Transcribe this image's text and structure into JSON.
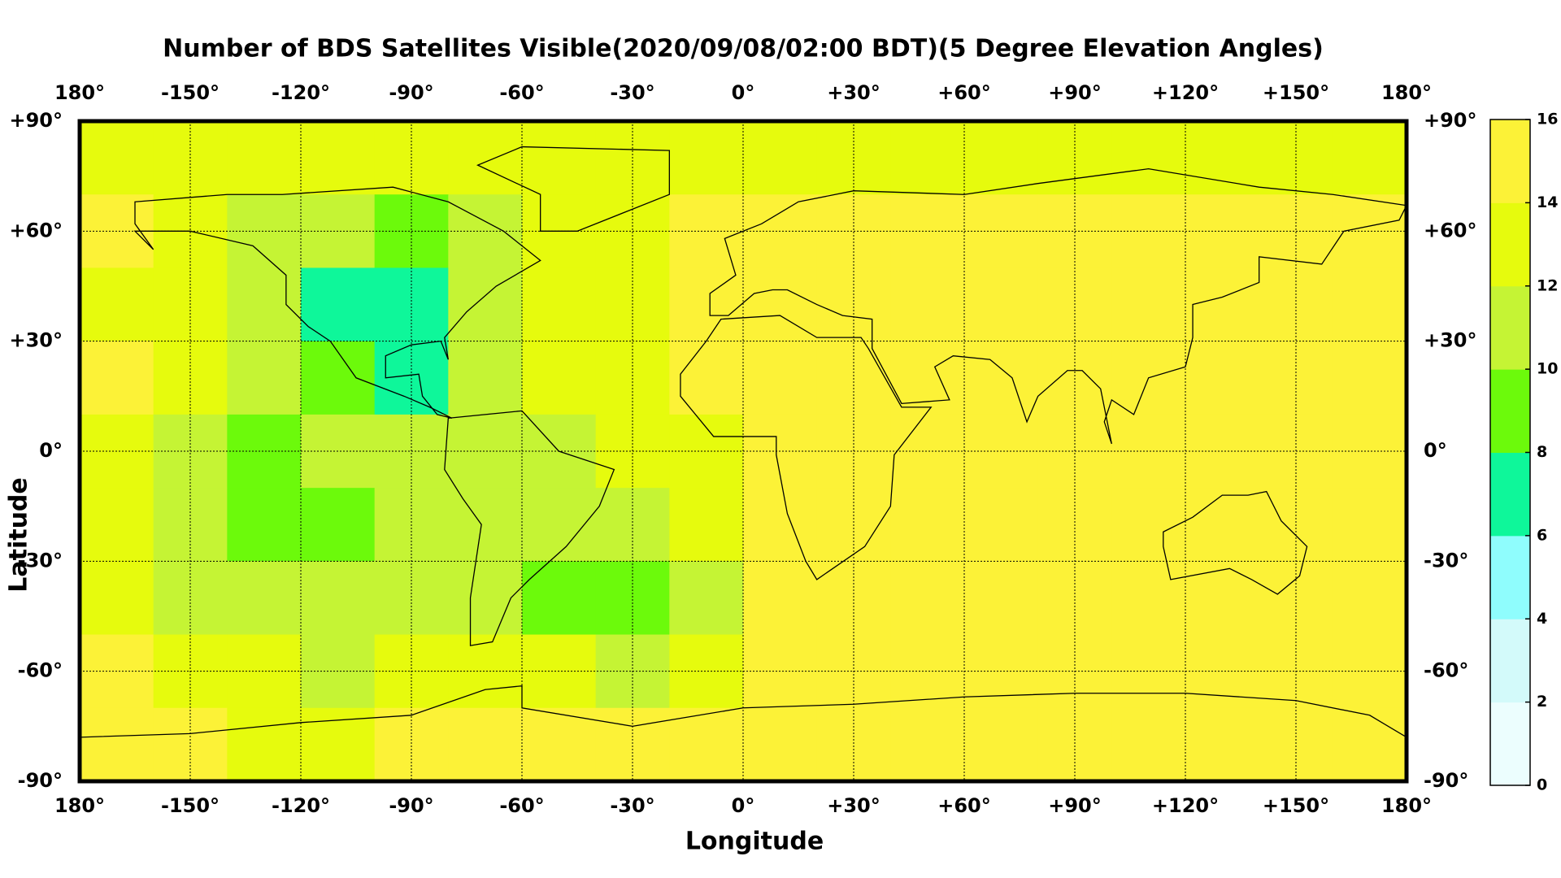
{
  "chart_data": {
    "type": "heatmap",
    "title": "Number of BDS Satellites Visible(2020/09/08/02:00 BDT)(5 Degree Elevation Angles)",
    "xlabel": "Longitude",
    "ylabel": "Latitude",
    "xlim": [
      -180,
      180
    ],
    "ylim": [
      -90,
      90
    ],
    "xticks": [
      {
        "value": -180,
        "label": "180°"
      },
      {
        "value": -150,
        "label": "-150°"
      },
      {
        "value": -120,
        "label": "-120°"
      },
      {
        "value": -90,
        "label": "-90°"
      },
      {
        "value": -60,
        "label": "-60°"
      },
      {
        "value": -30,
        "label": "-30°"
      },
      {
        "value": 0,
        "label": "0°"
      },
      {
        "value": 30,
        "label": "+30°"
      },
      {
        "value": 60,
        "label": "+60°"
      },
      {
        "value": 90,
        "label": "+90°"
      },
      {
        "value": 120,
        "label": "+120°"
      },
      {
        "value": 150,
        "label": "+150°"
      },
      {
        "value": 180,
        "label": "180°"
      }
    ],
    "yticks": [
      {
        "value": 90,
        "label": "+90°"
      },
      {
        "value": 60,
        "label": "+60°"
      },
      {
        "value": 30,
        "label": "+30°"
      },
      {
        "value": 0,
        "label": "0°"
      },
      {
        "value": -30,
        "label": "-30°"
      },
      {
        "value": -60,
        "label": "-60°"
      },
      {
        "value": -90,
        "label": "-90°"
      }
    ],
    "grid": true,
    "x": [
      -170,
      -150,
      -130,
      -110,
      -90,
      -70,
      -50,
      -30,
      -10,
      10,
      30,
      50,
      70,
      90,
      110,
      130,
      150,
      170
    ],
    "y": [
      80,
      60,
      40,
      20,
      0,
      -20,
      -40,
      -60,
      -80
    ],
    "z": [
      [
        13,
        13,
        13,
        13,
        13,
        13,
        13,
        13,
        13,
        13,
        13,
        13,
        13,
        13,
        13,
        13,
        13,
        13
      ],
      [
        15,
        13,
        11,
        11,
        9,
        11,
        13,
        13,
        15,
        15,
        15,
        15,
        15,
        15,
        15,
        15,
        15,
        15
      ],
      [
        13,
        13,
        11,
        7,
        7,
        11,
        13,
        13,
        15,
        15,
        15,
        15,
        15,
        15,
        15,
        15,
        15,
        15
      ],
      [
        15,
        13,
        11,
        9,
        7,
        11,
        13,
        13,
        15,
        15,
        15,
        15,
        15,
        15,
        15,
        15,
        15,
        15
      ],
      [
        13,
        11,
        9,
        11,
        11,
        11,
        11,
        13,
        13,
        15,
        15,
        15,
        15,
        15,
        15,
        15,
        15,
        15
      ],
      [
        13,
        11,
        9,
        9,
        11,
        11,
        11,
        11,
        13,
        15,
        15,
        15,
        15,
        15,
        15,
        15,
        15,
        15
      ],
      [
        13,
        11,
        11,
        11,
        11,
        11,
        9,
        9,
        11,
        15,
        15,
        15,
        15,
        15,
        15,
        15,
        15,
        15
      ],
      [
        15,
        13,
        13,
        11,
        13,
        13,
        13,
        11,
        13,
        15,
        15,
        15,
        15,
        15,
        15,
        15,
        15,
        15
      ],
      [
        15,
        15,
        13,
        13,
        15,
        15,
        15,
        15,
        15,
        15,
        15,
        15,
        15,
        15,
        15,
        15,
        15,
        15
      ]
    ],
    "clim": [
      0,
      16
    ],
    "cticks": [
      0,
      2,
      4,
      6,
      8,
      10,
      12,
      14,
      16
    ],
    "colors": [
      "#ecfefe",
      "#d3fafa",
      "#8ffdfd",
      "#0ef79a",
      "#6cfa0b",
      "#c5f434",
      "#e6fb0d",
      "#fcf237"
    ]
  }
}
